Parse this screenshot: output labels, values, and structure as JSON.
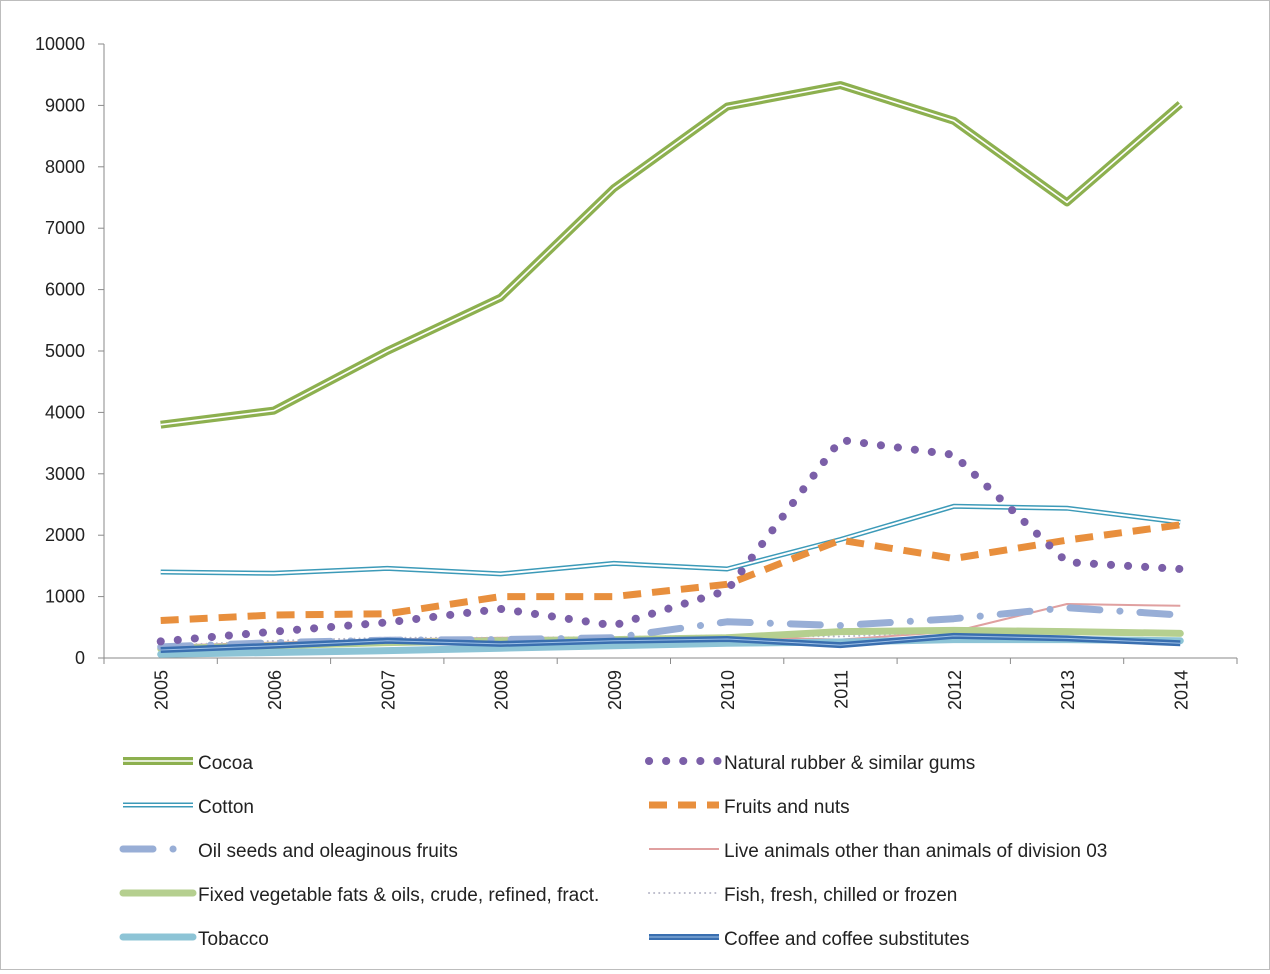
{
  "chart_data": {
    "type": "line",
    "title": "",
    "xlabel": "",
    "ylabel": "",
    "x": [
      "2005",
      "2006",
      "2007",
      "2008",
      "2009",
      "2010",
      "2011",
      "2012",
      "2013",
      "2014"
    ],
    "ylim": [
      0,
      10000
    ],
    "yticks": [
      0,
      1000,
      2000,
      3000,
      4000,
      5000,
      6000,
      7000,
      8000,
      9000,
      10000
    ],
    "grid": false,
    "legend_position": "bottom",
    "series": [
      {
        "name": "Cocoa",
        "color": "#8db04f",
        "style": "double-thick",
        "values": [
          3800,
          4030,
          5000,
          5870,
          7650,
          8980,
          9330,
          8750,
          7420,
          9020
        ]
      },
      {
        "name": "Natural rubber & similar gums",
        "color": "#7b5fa8",
        "style": "dotted",
        "values": [
          270,
          430,
          580,
          800,
          530,
          1100,
          3550,
          3310,
          1560,
          1450
        ]
      },
      {
        "name": "Cotton",
        "color": "#3c9ab8",
        "style": "double-thin",
        "values": [
          1400,
          1380,
          1460,
          1370,
          1540,
          1450,
          1930,
          2470,
          2440,
          2210
        ]
      },
      {
        "name": "Fruits and nuts",
        "color": "#e88f3d",
        "style": "dashed",
        "values": [
          610,
          700,
          720,
          1000,
          1000,
          1200,
          1920,
          1620,
          1920,
          2170
        ]
      },
      {
        "name": "Oil seeds and oleaginous fruits",
        "color": "#98aed6",
        "style": "dash-dot",
        "values": [
          180,
          250,
          290,
          300,
          330,
          590,
          530,
          640,
          820,
          700
        ]
      },
      {
        "name": "Live animals other than animals of division 03",
        "color": "#e0a0a0",
        "style": "thin",
        "values": [
          200,
          250,
          300,
          330,
          330,
          350,
          300,
          430,
          880,
          850
        ]
      },
      {
        "name": "Fixed vegetable fats & oils, crude, refined, fract.",
        "color": "#b5cf8f",
        "style": "thick",
        "values": [
          150,
          200,
          250,
          280,
          300,
          330,
          430,
          450,
          430,
          400
        ]
      },
      {
        "name": "Fish, fresh, chilled or frozen",
        "color": "#b8b8c8",
        "style": "fine-dotted",
        "values": [
          200,
          280,
          330,
          330,
          340,
          370,
          350,
          420,
          400,
          400
        ]
      },
      {
        "name": "Tobacco",
        "color": "#8dc4d6",
        "style": "thick",
        "values": [
          60,
          90,
          120,
          160,
          200,
          240,
          260,
          300,
          300,
          280
        ]
      },
      {
        "name": "Coffee and coffee substitutes",
        "color": "#3a6fb0",
        "style": "double-blue",
        "values": [
          130,
          200,
          280,
          230,
          280,
          310,
          210,
          360,
          320,
          240
        ]
      }
    ]
  }
}
